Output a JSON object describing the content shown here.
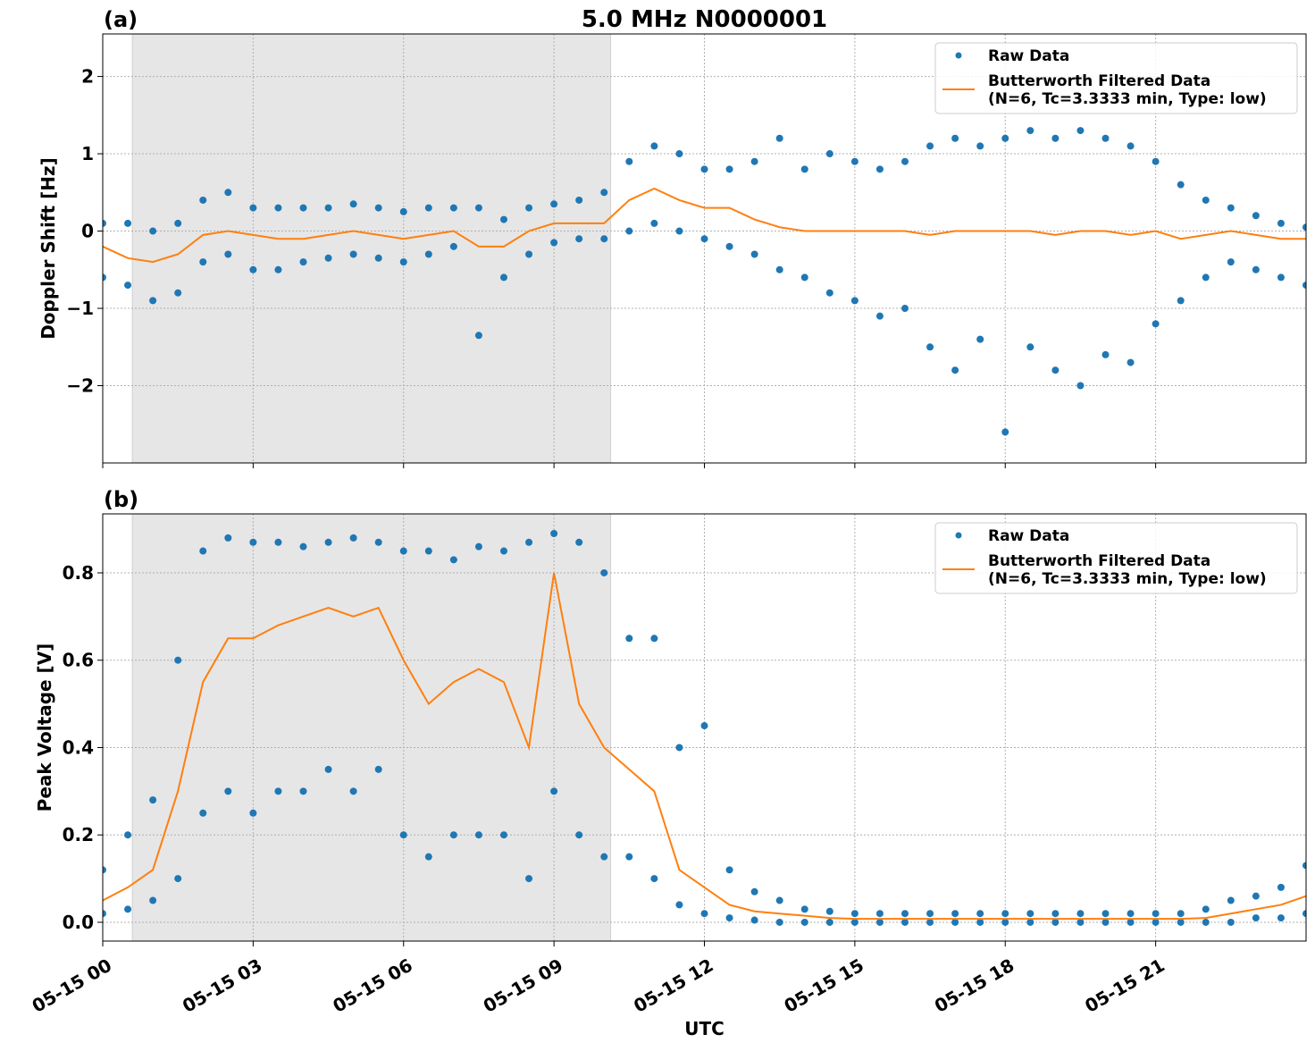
{
  "chart_data": [
    {
      "type": "line",
      "panel_label": "(a)",
      "title": "5.0 MHz N0000001",
      "y_label": "Doppler Shift [Hz]",
      "xlim": [
        0,
        24
      ],
      "xticks": [
        0,
        3,
        6,
        9,
        12,
        15,
        18,
        21
      ],
      "show_xtick_labels": false,
      "ylim": [
        -3,
        2.55
      ],
      "yticks": [
        {
          "value": -2,
          "label": "−2"
        },
        {
          "value": -1,
          "label": "−1"
        },
        0,
        1,
        2
      ],
      "grid": true,
      "shaded_span": [
        0.59,
        10.13
      ],
      "legend": "upper right",
      "series": [
        {
          "name": "Raw Data",
          "type": "scatter",
          "color": "#1f77b4",
          "x": [
            0,
            0,
            0.5,
            0.5,
            1,
            1,
            1.5,
            1.5,
            2,
            2,
            2.5,
            2.5,
            3,
            3,
            3.5,
            3.5,
            4,
            4,
            4.5,
            4.5,
            5,
            5,
            5.5,
            5.5,
            6,
            6,
            6.5,
            6.5,
            7,
            7,
            7.5,
            7.5,
            8,
            8,
            8.5,
            8.5,
            9,
            9,
            9.5,
            9.5,
            10,
            10,
            10.5,
            10.5,
            11,
            11,
            11.5,
            11.5,
            12,
            12,
            12.5,
            12.5,
            13,
            13,
            13.5,
            13.5,
            14,
            14,
            14.5,
            14.5,
            15,
            15,
            15.5,
            15.5,
            16,
            16,
            16.5,
            16.5,
            17,
            17,
            17.5,
            17.5,
            18,
            18,
            18.5,
            18.5,
            19,
            19,
            19.5,
            19.5,
            20,
            20,
            20.5,
            20.5,
            21,
            21,
            21.5,
            21.5,
            22,
            22,
            22.5,
            22.5,
            23,
            23,
            23.5,
            23.5,
            24,
            24
          ],
          "values": [
            -0.6,
            0.1,
            -0.7,
            0.1,
            -0.9,
            0.0,
            -0.8,
            0.1,
            -0.4,
            0.4,
            -0.3,
            0.5,
            -0.5,
            0.3,
            -0.5,
            0.3,
            -0.4,
            0.3,
            -0.35,
            0.3,
            -0.3,
            0.35,
            -0.35,
            0.3,
            -0.4,
            0.25,
            -0.3,
            0.3,
            -0.2,
            0.3,
            -1.35,
            0.3,
            -0.6,
            0.15,
            -0.3,
            0.3,
            -0.15,
            0.35,
            -0.1,
            0.4,
            -0.1,
            0.5,
            0.0,
            0.9,
            0.1,
            1.1,
            0.0,
            1.0,
            -0.1,
            0.8,
            -0.2,
            0.8,
            -0.3,
            0.9,
            -0.5,
            1.2,
            -0.6,
            0.8,
            -0.8,
            1.0,
            -0.9,
            0.9,
            -1.1,
            0.8,
            -1.0,
            0.9,
            -1.5,
            1.1,
            -1.8,
            1.2,
            -1.4,
            1.1,
            -2.6,
            1.2,
            -1.5,
            1.3,
            -1.8,
            1.2,
            -2.0,
            1.3,
            -1.6,
            1.2,
            -1.7,
            1.1,
            -1.2,
            0.9,
            -0.9,
            0.6,
            -0.6,
            0.4,
            -0.4,
            0.3,
            -0.5,
            0.2,
            -0.6,
            0.1,
            -0.7,
            0.05
          ]
        },
        {
          "name": [
            "Butterworth Filtered Data",
            "(N=6, Tc=3.3333 min, Type: low)"
          ],
          "type": "line",
          "color": "#ff7f0e",
          "x": [
            0,
            0.5,
            1,
            1.5,
            2,
            2.5,
            3,
            3.5,
            4,
            4.5,
            5,
            5.5,
            6,
            6.5,
            7,
            7.5,
            8,
            8.5,
            9,
            9.5,
            10,
            10.5,
            11,
            11.5,
            12,
            12.5,
            13,
            13.5,
            14,
            14.5,
            15,
            15.5,
            16,
            16.5,
            17,
            17.5,
            18,
            18.5,
            19,
            19.5,
            20,
            20.5,
            21,
            21.5,
            22,
            22.5,
            23,
            23.5,
            24
          ],
          "values": [
            -0.2,
            -0.35,
            -0.4,
            -0.3,
            -0.05,
            0.0,
            -0.05,
            -0.1,
            -0.1,
            -0.05,
            0.0,
            -0.05,
            -0.1,
            -0.05,
            0.0,
            -0.2,
            -0.2,
            0.0,
            0.1,
            0.1,
            0.1,
            0.4,
            0.55,
            0.4,
            0.3,
            0.3,
            0.15,
            0.05,
            0.0,
            0.0,
            0.0,
            0.0,
            0.0,
            -0.05,
            0.0,
            0.0,
            0.0,
            0.0,
            -0.05,
            0.0,
            0.0,
            -0.05,
            0.0,
            -0.1,
            -0.05,
            0.0,
            -0.05,
            -0.1,
            -0.1
          ]
        }
      ]
    },
    {
      "type": "line",
      "panel_label": "(b)",
      "y_label": "Peak Voltage [V]",
      "x_label": "UTC",
      "xlim": [
        0,
        24
      ],
      "xticks": [
        {
          "value": 0,
          "label": "05-15 00"
        },
        {
          "value": 3,
          "label": "05-15 03"
        },
        {
          "value": 6,
          "label": "05-15 06"
        },
        {
          "value": 9,
          "label": "05-15 09"
        },
        {
          "value": 12,
          "label": "05-15 12"
        },
        {
          "value": 15,
          "label": "05-15 15"
        },
        {
          "value": 18,
          "label": "05-15 18"
        },
        {
          "value": 21,
          "label": "05-15 21"
        }
      ],
      "show_xtick_labels": true,
      "ylim": [
        -0.043,
        0.935
      ],
      "yticks": [
        {
          "value": 0,
          "label": "0.0"
        },
        0.2,
        0.4,
        0.6,
        0.8
      ],
      "grid": true,
      "shaded_span": [
        0.59,
        10.13
      ],
      "legend": "upper right",
      "series": [
        {
          "name": "Raw Data",
          "type": "scatter",
          "color": "#1f77b4",
          "x": [
            0,
            0,
            0.5,
            0.5,
            1,
            1,
            1.5,
            1.5,
            2,
            2,
            2.5,
            2.5,
            3,
            3,
            3.5,
            3.5,
            4,
            4,
            4.5,
            4.5,
            5,
            5,
            5.5,
            5.5,
            6,
            6,
            6.5,
            6.5,
            7,
            7,
            7.5,
            7.5,
            8,
            8,
            8.5,
            8.5,
            9,
            9,
            9.5,
            9.5,
            10,
            10,
            10.5,
            10.5,
            11,
            11,
            11.5,
            11.5,
            12,
            12,
            12.5,
            12.5,
            13,
            13,
            13.5,
            13.5,
            14,
            14,
            14.5,
            14.5,
            15,
            15,
            15.5,
            15.5,
            16,
            16,
            16.5,
            16.5,
            17,
            17,
            17.5,
            17.5,
            18,
            18,
            18.5,
            18.5,
            19,
            19,
            19.5,
            19.5,
            20,
            20,
            20.5,
            20.5,
            21,
            21,
            21.5,
            21.5,
            22,
            22,
            22.5,
            22.5,
            23,
            23,
            23.5,
            23.5,
            24,
            24
          ],
          "values": [
            0.02,
            0.12,
            0.03,
            0.2,
            0.05,
            0.28,
            0.1,
            0.6,
            0.25,
            0.85,
            0.3,
            0.88,
            0.25,
            0.87,
            0.3,
            0.87,
            0.3,
            0.86,
            0.35,
            0.87,
            0.3,
            0.88,
            0.35,
            0.87,
            0.2,
            0.85,
            0.15,
            0.85,
            0.2,
            0.83,
            0.2,
            0.86,
            0.2,
            0.85,
            0.1,
            0.87,
            0.3,
            0.89,
            0.2,
            0.87,
            0.15,
            0.8,
            0.15,
            0.65,
            0.1,
            0.65,
            0.04,
            0.4,
            0.02,
            0.45,
            0.01,
            0.12,
            0.005,
            0.07,
            0,
            0.05,
            0,
            0.03,
            0,
            0.025,
            0,
            0.02,
            0,
            0.02,
            0,
            0.02,
            0,
            0.02,
            0,
            0.02,
            0,
            0.02,
            0,
            0.02,
            0,
            0.02,
            0,
            0.02,
            0,
            0.02,
            0,
            0.02,
            0,
            0.02,
            0,
            0.02,
            0,
            0.02,
            0,
            0.03,
            0,
            0.05,
            0.01,
            0.06,
            0.01,
            0.08,
            0.02,
            0.13
          ]
        },
        {
          "name": [
            "Butterworth Filtered Data",
            "(N=6, Tc=3.3333 min, Type: low)"
          ],
          "type": "line",
          "color": "#ff7f0e",
          "x": [
            0,
            0.5,
            1,
            1.5,
            2,
            2.5,
            3,
            3.5,
            4,
            4.5,
            5,
            5.5,
            6,
            6.5,
            7,
            7.5,
            8,
            8.5,
            9,
            9.5,
            10,
            10.5,
            11,
            11.5,
            12,
            12.5,
            13,
            13.5,
            14,
            14.5,
            15,
            15.5,
            16,
            16.5,
            17,
            17.5,
            18,
            18.5,
            19,
            19.5,
            20,
            20.5,
            21,
            21.5,
            22,
            22.5,
            23,
            23.5,
            24
          ],
          "values": [
            0.05,
            0.08,
            0.12,
            0.3,
            0.55,
            0.65,
            0.65,
            0.68,
            0.7,
            0.72,
            0.7,
            0.72,
            0.6,
            0.5,
            0.55,
            0.58,
            0.55,
            0.4,
            0.8,
            0.5,
            0.4,
            0.35,
            0.3,
            0.12,
            0.08,
            0.04,
            0.025,
            0.02,
            0.015,
            0.01,
            0.008,
            0.008,
            0.008,
            0.008,
            0.008,
            0.008,
            0.008,
            0.008,
            0.008,
            0.008,
            0.008,
            0.008,
            0.008,
            0.008,
            0.01,
            0.02,
            0.03,
            0.04,
            0.06
          ]
        }
      ]
    }
  ]
}
